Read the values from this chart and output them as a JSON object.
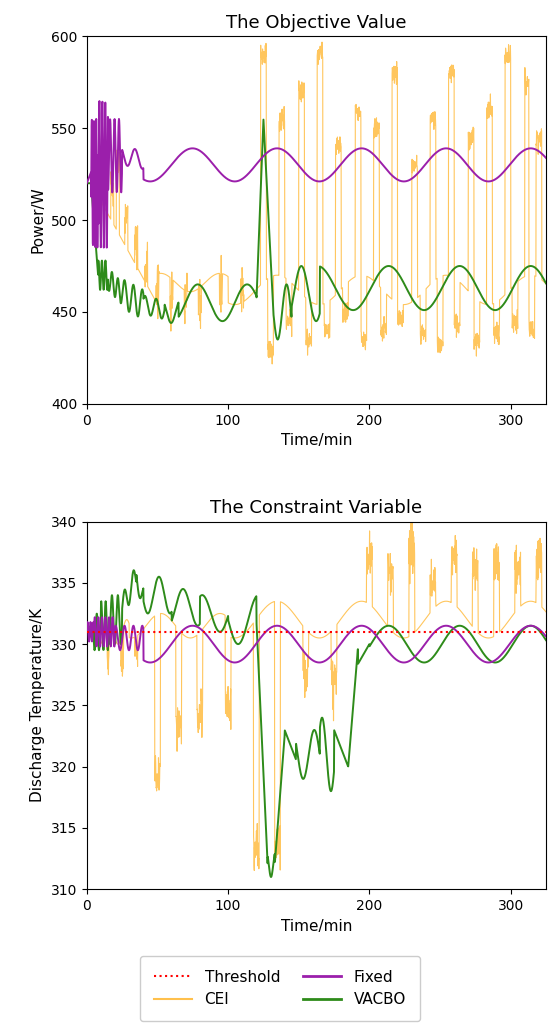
{
  "title1": "The Objective Value",
  "title2": "The Constraint Variable",
  "xlabel": "Time/min",
  "ylabel1": "Power/W",
  "ylabel2": "Discharge Temperature/K",
  "colors": {
    "fixed": "#9B1FAB",
    "cei": "#FFC04C",
    "vacbo": "#2E8B1A",
    "threshold": "#FF0000"
  },
  "xmax": 325,
  "obj_ylim": [
    400,
    600
  ],
  "con_ylim": [
    310,
    340
  ],
  "threshold_value": 331.0,
  "figsize": [
    5.6,
    10.34
  ],
  "dpi": 100
}
